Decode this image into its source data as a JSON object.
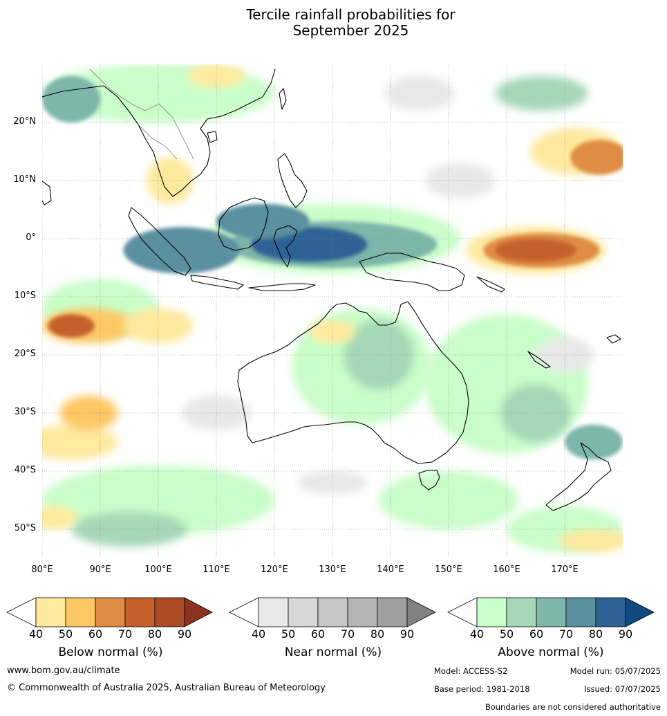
{
  "title": {
    "line1": "Tercile rainfall probabilities for",
    "line2": "September 2025"
  },
  "map": {
    "lon_range": [
      80,
      180
    ],
    "lat_range": [
      -55,
      30
    ],
    "lat_labels": [
      "20°N",
      "10°N",
      "0°",
      "10°S",
      "20°S",
      "30°S",
      "40°S",
      "50°S"
    ],
    "lat_values": [
      20,
      10,
      0,
      -10,
      -20,
      -30,
      -40,
      -50
    ],
    "lon_labels": [
      "80°E",
      "90°E",
      "100°E",
      "110°E",
      "120°E",
      "130°E",
      "140°E",
      "150°E",
      "160°E",
      "170°E"
    ],
    "lon_values": [
      80,
      90,
      100,
      110,
      120,
      130,
      140,
      150,
      160,
      170
    ],
    "colors": {
      "below": [
        "#fee99d",
        "#fdc863",
        "#df8d44",
        "#c6612c",
        "#ad4a26",
        "#8b3220"
      ],
      "near": [
        "#e8e8e8",
        "#d7d7d7",
        "#c6c6c6",
        "#b4b4b4",
        "#9f9f9f",
        "#818181"
      ],
      "above": [
        "#c9fdc9",
        "#a6d8b8",
        "#7db6aa",
        "#5a90a0",
        "#2e6294",
        "#104a80"
      ]
    }
  },
  "colorbars": [
    {
      "label": "Below normal (%)",
      "ticks": [
        "40",
        "50",
        "60",
        "70",
        "80",
        "90"
      ],
      "palette": "below"
    },
    {
      "label": "Near normal (%)",
      "ticks": [
        "40",
        "50",
        "60",
        "70",
        "80",
        "90"
      ],
      "palette": "near"
    },
    {
      "label": "Above normal (%)",
      "ticks": [
        "40",
        "50",
        "60",
        "70",
        "80",
        "90"
      ],
      "palette": "above"
    }
  ],
  "footer": {
    "website": "www.bom.gov.au/climate",
    "copyright": "© Commonwealth of Australia 2025, Australian Bureau of Meteorology",
    "model": "Model: ACCESS-S2",
    "model_run": "Model run: 05/07/2025",
    "base_period": "Base period: 1981-2018",
    "issued": "Issued: 07/07/2025",
    "boundaries": "Boundaries are not considered authoritative"
  }
}
